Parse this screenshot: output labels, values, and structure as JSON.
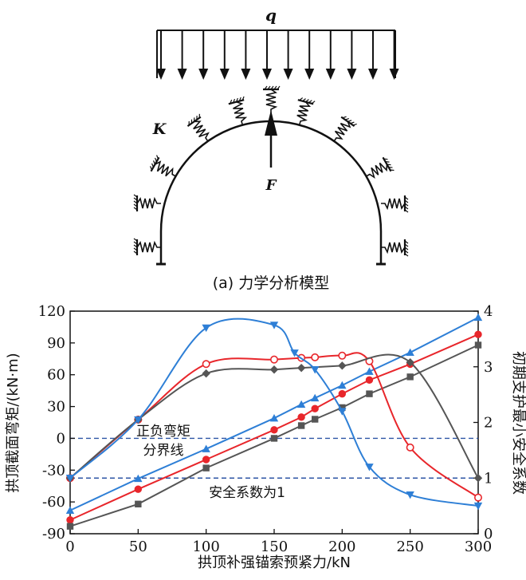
{
  "diagram": {
    "load_label": "q",
    "stiffness_label": "K",
    "force_label": "F",
    "caption": "(a)  力学分析模型"
  },
  "annotations": {
    "boundary_label_line1": "正负弯矩",
    "boundary_label_line2": "分界线",
    "safety_label": "安全系数为1"
  },
  "chart_data": {
    "type": "line",
    "xlabel": "拱顶补强锚索预紧力/kN",
    "ylabel_left": "拱顶截面弯矩/(kN·m)",
    "ylabel_right": "初期支护最小安全系数",
    "xlim": [
      0,
      300
    ],
    "ylim_left": [
      -90,
      120
    ],
    "ylim_right": [
      0,
      4
    ],
    "x_ticks": [
      0,
      50,
      100,
      150,
      200,
      250,
      300
    ],
    "y_left_ticks": [
      -90,
      -60,
      -30,
      0,
      30,
      60,
      90,
      120
    ],
    "y_right_ticks": [
      0,
      1,
      2,
      3,
      4
    ],
    "reference_lines": [
      {
        "axis": "left",
        "value": 0,
        "style": "dashed",
        "color": "#2e55a5"
      },
      {
        "axis": "right",
        "value": 1,
        "style": "dashed",
        "color": "#2e55a5"
      }
    ],
    "series": [
      {
        "kind": "moment",
        "axis": "left",
        "color": "#e8262b",
        "marker": "circle-filled",
        "x": [
          0,
          50,
          100,
          150,
          170,
          180,
          200,
          220,
          250,
          300
        ],
        "y": [
          -77,
          -48,
          -20,
          8,
          20,
          28,
          42,
          55,
          70,
          98
        ]
      },
      {
        "kind": "moment",
        "axis": "left",
        "color": "#555555",
        "marker": "square-filled",
        "x": [
          0,
          50,
          100,
          150,
          170,
          180,
          200,
          220,
          250,
          300
        ],
        "y": [
          -83,
          -62,
          -28,
          0,
          12,
          18,
          29,
          42,
          58,
          88
        ]
      },
      {
        "kind": "moment",
        "axis": "left",
        "color": "#2e7fd6",
        "marker": "triangle-filled",
        "x": [
          0,
          50,
          100,
          150,
          170,
          180,
          200,
          220,
          250,
          300
        ],
        "y": [
          -68,
          -38,
          -10,
          19,
          32,
          38,
          50,
          63,
          81,
          114
        ]
      },
      {
        "kind": "safety",
        "axis": "right",
        "color": "#e8262b",
        "marker": "circle-open",
        "x": [
          0,
          50,
          100,
          150,
          170,
          180,
          200,
          220,
          250,
          300
        ],
        "y": [
          1.0,
          2.05,
          3.05,
          3.13,
          3.16,
          3.17,
          3.2,
          3.1,
          1.55,
          0.65
        ]
      },
      {
        "kind": "safety",
        "axis": "right",
        "color": "#555555",
        "marker": "diamond-filled",
        "x": [
          0,
          50,
          100,
          150,
          170,
          200,
          250,
          300
        ],
        "y": [
          1.0,
          2.05,
          2.88,
          2.95,
          2.98,
          3.02,
          3.08,
          1.0
        ]
      },
      {
        "kind": "safety",
        "axis": "right",
        "color": "#2e7fd6",
        "marker": "triangle-down-filled",
        "x": [
          0,
          50,
          100,
          150,
          165,
          180,
          200,
          220,
          250,
          300
        ],
        "y": [
          1.0,
          2.05,
          3.7,
          3.75,
          3.25,
          2.95,
          2.2,
          1.2,
          0.7,
          0.5
        ]
      }
    ]
  }
}
